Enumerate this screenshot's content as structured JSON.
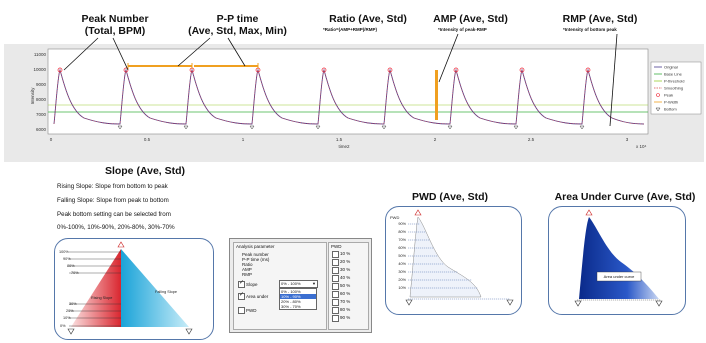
{
  "headers": {
    "peak_number": {
      "line1": "Peak Number",
      "line2": "(Total, BPM)"
    },
    "pp_time": {
      "line1": "P-P time",
      "line2": "(Ave, Std, Max, Min)"
    },
    "ratio": {
      "line1": "Ratio  (Ave, Std)",
      "sub": "*Ratio=(AMP+RMP)/RMP)"
    },
    "amp": {
      "line1": "AMP  (Ave, Std)",
      "sub": "*Intensity of peak-RMP"
    },
    "rmp": {
      "line1": "RMP (Ave, Std)",
      "sub": "*Intensity of bottom peak"
    }
  },
  "trace": {
    "y_ticks": [
      "11000",
      "10000",
      "9000",
      "8000",
      "7000",
      "6000"
    ],
    "y_label": "Intensity",
    "x_ticks": [
      "0",
      "0.5",
      "1",
      "1.5",
      "2",
      "2.5",
      "3"
    ],
    "x_label": "time2",
    "x_exp": "x 10⁴",
    "legend": [
      "Original",
      "Base Line",
      "P-threshold",
      "Smoothing",
      "Peak",
      "P-Width",
      "Bottom"
    ]
  },
  "slope": {
    "title": "Slope (Ave, Std)",
    "lines": [
      "Rising Slope: Slope from bottom to peak",
      "Falling Slope: Slope from peak to bottom",
      "Peak bottom setting can be selected from",
      "0%-100%,   10%-90%,  20%-80%,  30%-70%"
    ],
    "rising_label": "Rising Slope",
    "falling_label": "Falling Slope",
    "levels": [
      "100%",
      "90%",
      "80%",
      "70%",
      "30%",
      "20%",
      "10%",
      "0%"
    ]
  },
  "dialog": {
    "title": "Analysis parameter",
    "items": [
      "Peak number",
      "P-P time (ms)",
      "Ratio",
      "AMP",
      "RMP"
    ],
    "slope_label": "Slope",
    "slope_value": "0% - 100%",
    "area_label": "Area under",
    "pwd_label": "PWD",
    "options": [
      "0% - 100%",
      "10% - 90%",
      "20% - 80%",
      "30% - 70%"
    ],
    "pwd_header": "PWD",
    "pwd_options": [
      "10 %",
      "20 %",
      "30 %",
      "40 %",
      "50 %",
      "60 %",
      "70 %",
      "80 %",
      "90 %"
    ]
  },
  "pwd": {
    "title": "PWD (Ave, Std)",
    "axis": "PWD",
    "levels": [
      "10%",
      "20%",
      "30%",
      "40%",
      "50%",
      "60%",
      "70%",
      "80%",
      "90%"
    ]
  },
  "auc": {
    "title": "Area Under Curve  (Ave, Std)",
    "label": "Area under curve"
  }
}
